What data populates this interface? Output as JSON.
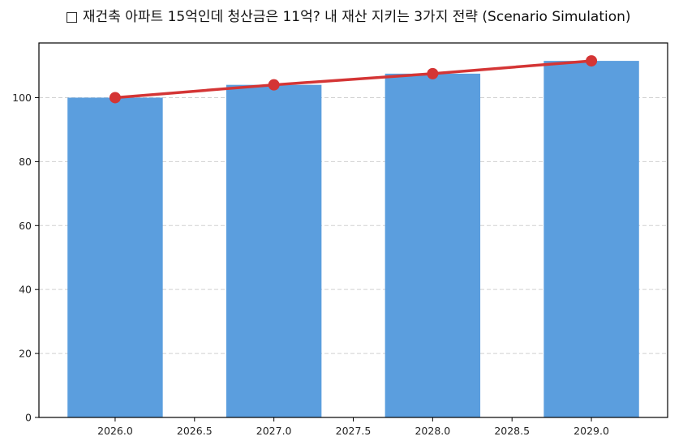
{
  "chart_data": {
    "type": "bar",
    "title": "□ 재건축 아파트 15억인데 청산금은 11억? 내 재산 지키는 3가지 전략 (Scenario Simulation)",
    "xlabel": "",
    "ylabel": "",
    "categories": [
      2026,
      2027,
      2028,
      2029
    ],
    "series": [
      {
        "name": "bar",
        "type": "bar",
        "color": "#5b9ede",
        "values": [
          100,
          104,
          107.5,
          111.5
        ]
      },
      {
        "name": "line",
        "type": "line",
        "color": "#d43535",
        "values": [
          100,
          104,
          107.5,
          111.5
        ]
      }
    ],
    "xlim": [
      2025.52,
      2029.48
    ],
    "ylim": [
      0,
      117.1
    ],
    "xticks": [
      "2026.0",
      "2026.5",
      "2027.0",
      "2027.5",
      "2028.0",
      "2028.5",
      "2029.0"
    ],
    "xtick_values": [
      2026.0,
      2026.5,
      2027.0,
      2027.5,
      2028.0,
      2028.5,
      2029.0
    ],
    "yticks": [
      "0",
      "20",
      "40",
      "60",
      "80",
      "100"
    ],
    "ytick_values": [
      0,
      20,
      40,
      60,
      80,
      100
    ],
    "bar_width": 0.6,
    "grid": {
      "axis": "y",
      "style": "dashed",
      "color": "#d0d0d0"
    },
    "legend": null
  }
}
